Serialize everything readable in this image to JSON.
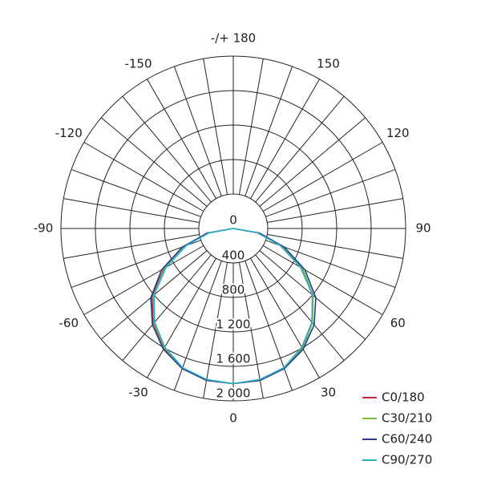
{
  "chart_data": {
    "type": "polar",
    "angles": [
      -90,
      -80,
      -70,
      -60,
      -50,
      -40,
      -30,
      -20,
      -10,
      0,
      10,
      20,
      30,
      40,
      50,
      60,
      70,
      80,
      90
    ],
    "rlim": [
      0,
      2000
    ],
    "rticks": [
      0,
      400,
      800,
      {
        "value": 1200,
        "label": "1 200"
      },
      {
        "value": 1600,
        "label": "1 600"
      },
      {
        "value": 2000,
        "label": "2 000"
      }
    ],
    "angle_ticks": [
      0,
      30,
      60,
      90,
      120,
      150,
      {
        "value": 180,
        "label": "-/+ 180"
      },
      -150,
      -120,
      -90,
      -60,
      -30
    ],
    "series": [
      {
        "name": "C0/180",
        "color": "#c0282d",
        "values": [
          0,
          300,
          610,
          930,
          1230,
          1440,
          1610,
          1730,
          1790,
          1800,
          1790,
          1720,
          1600,
          1420,
          1200,
          920,
          600,
          300,
          0
        ]
      },
      {
        "name": "C30/210",
        "color": "#7cbc3a",
        "values": [
          0,
          290,
          600,
          920,
          1210,
          1430,
          1600,
          1720,
          1790,
          1800,
          1790,
          1720,
          1610,
          1430,
          1210,
          930,
          610,
          300,
          0
        ]
      },
      {
        "name": "C60/240",
        "color": "#2a3a8f",
        "values": [
          0,
          310,
          630,
          960,
          1250,
          1460,
          1620,
          1730,
          1790,
          1800,
          1790,
          1730,
          1620,
          1460,
          1250,
          960,
          630,
          310,
          0
        ]
      },
      {
        "name": "C90/270",
        "color": "#2ab0c8",
        "values": [
          0,
          280,
          580,
          900,
          1200,
          1420,
          1590,
          1720,
          1780,
          1800,
          1780,
          1720,
          1590,
          1420,
          1200,
          900,
          580,
          280,
          0
        ]
      }
    ]
  }
}
